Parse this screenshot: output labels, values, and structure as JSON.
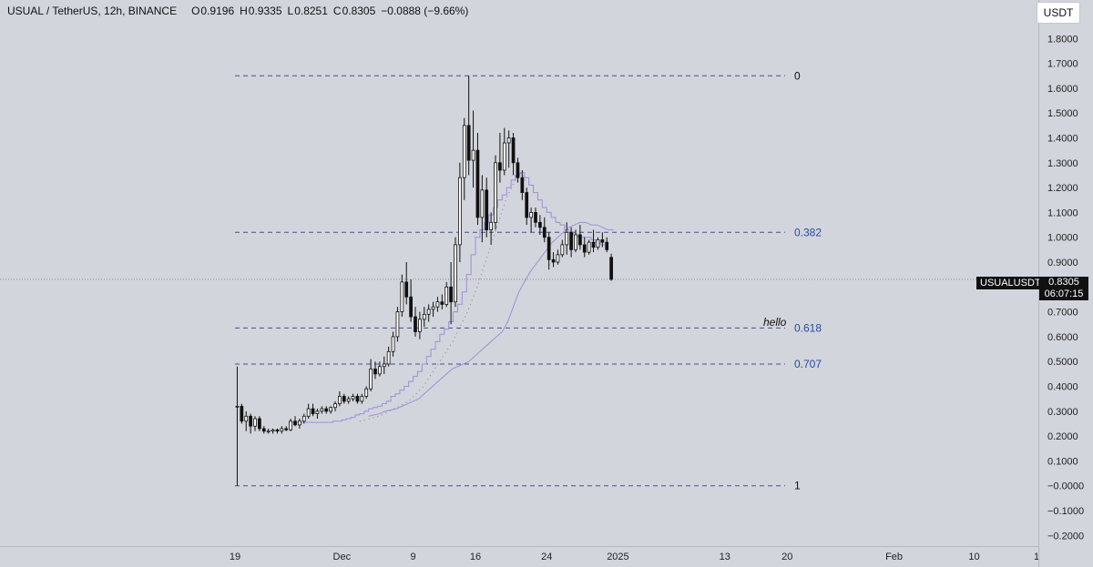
{
  "header": {
    "symbol": "USUAL / TetherUS, 12h, BINANCE",
    "open_key": "O",
    "open": "0.9196",
    "high_key": "H",
    "high": "0.9335",
    "low_key": "L",
    "low": "0.8251",
    "close_key": "C",
    "close": "0.8305",
    "change": "−0.0888 (−9.66%)"
  },
  "currency_button": "USDT",
  "last_price": {
    "symbol": "USUALUSDT",
    "price": "0.8305",
    "countdown": "06:07:15"
  },
  "annotation": "hello",
  "colors": {
    "background": "#d3d5dc",
    "candle_up": "#ffffff",
    "candle_down": "#111111",
    "ma": "#9b8fd6",
    "fib_line": "#4a4f8c",
    "fib_label_mid": "#2a4aa0",
    "fib_label_end": "#111111"
  },
  "chart_data": {
    "type": "candlestick",
    "ylim": [
      -0.25,
      1.9
    ],
    "y_ticks": [
      1.8,
      1.7,
      1.6,
      1.5,
      1.4,
      1.3,
      1.2,
      1.1,
      1.0,
      0.9,
      0.7,
      0.6,
      0.5,
      0.4,
      0.3,
      0.2,
      0.1,
      -0.0,
      -0.1,
      -0.2
    ],
    "y_tick_labels": [
      "1.8000",
      "1.7000",
      "1.6000",
      "1.5000",
      "1.4000",
      "1.3000",
      "1.2000",
      "1.1000",
      "1.0000",
      "0.9000",
      "0.7000",
      "0.6000",
      "0.5000",
      "0.4000",
      "0.3000",
      "0.2000",
      "0.1000",
      "−0.0000",
      "−0.1000",
      "−0.2000"
    ],
    "x_axis_days": [
      "2024-11-19",
      "2025-02-17"
    ],
    "x_ticks": [
      {
        "label": "19",
        "day": "2024-11-19"
      },
      {
        "label": "Dec",
        "day": "2024-12-01"
      },
      {
        "label": "9",
        "day": "2024-12-09"
      },
      {
        "label": "16",
        "day": "2024-12-16"
      },
      {
        "label": "24",
        "day": "2024-12-24"
      },
      {
        "label": "2025",
        "day": "2025-01-01"
      },
      {
        "label": "13",
        "day": "2025-01-13"
      },
      {
        "label": "20",
        "day": "2025-01-20"
      },
      {
        "label": "Feb",
        "day": "2025-02-01"
      },
      {
        "label": "10",
        "day": "2025-02-10"
      },
      {
        "label": "1",
        "day": "2025-02-17"
      }
    ],
    "fib_levels": [
      {
        "label": "0",
        "value": 1.65
      },
      {
        "label": "0.382",
        "value": 1.02
      },
      {
        "label": "0.618",
        "value": 0.635
      },
      {
        "label": "0.707",
        "value": 0.49
      },
      {
        "label": "1",
        "value": 0.0
      }
    ],
    "candles": [
      {
        "o": 0.32,
        "h": 0.48,
        "l": 0.0,
        "c": 0.32
      },
      {
        "o": 0.32,
        "h": 0.33,
        "l": 0.25,
        "c": 0.26
      },
      {
        "o": 0.26,
        "h": 0.3,
        "l": 0.22,
        "c": 0.28
      },
      {
        "o": 0.28,
        "h": 0.29,
        "l": 0.21,
        "c": 0.24
      },
      {
        "o": 0.24,
        "h": 0.28,
        "l": 0.22,
        "c": 0.27
      },
      {
        "o": 0.27,
        "h": 0.28,
        "l": 0.22,
        "c": 0.23
      },
      {
        "o": 0.23,
        "h": 0.24,
        "l": 0.21,
        "c": 0.22
      },
      {
        "o": 0.22,
        "h": 0.23,
        "l": 0.21,
        "c": 0.22
      },
      {
        "o": 0.22,
        "h": 0.23,
        "l": 0.21,
        "c": 0.225
      },
      {
        "o": 0.225,
        "h": 0.23,
        "l": 0.21,
        "c": 0.22
      },
      {
        "o": 0.22,
        "h": 0.24,
        "l": 0.21,
        "c": 0.23
      },
      {
        "o": 0.23,
        "h": 0.24,
        "l": 0.22,
        "c": 0.225
      },
      {
        "o": 0.225,
        "h": 0.27,
        "l": 0.22,
        "c": 0.26
      },
      {
        "o": 0.26,
        "h": 0.28,
        "l": 0.24,
        "c": 0.245
      },
      {
        "o": 0.245,
        "h": 0.27,
        "l": 0.23,
        "c": 0.26
      },
      {
        "o": 0.26,
        "h": 0.29,
        "l": 0.25,
        "c": 0.28
      },
      {
        "o": 0.28,
        "h": 0.33,
        "l": 0.27,
        "c": 0.31
      },
      {
        "o": 0.31,
        "h": 0.33,
        "l": 0.28,
        "c": 0.29
      },
      {
        "o": 0.29,
        "h": 0.31,
        "l": 0.27,
        "c": 0.3
      },
      {
        "o": 0.3,
        "h": 0.32,
        "l": 0.29,
        "c": 0.31
      },
      {
        "o": 0.31,
        "h": 0.32,
        "l": 0.29,
        "c": 0.3
      },
      {
        "o": 0.3,
        "h": 0.32,
        "l": 0.29,
        "c": 0.315
      },
      {
        "o": 0.315,
        "h": 0.34,
        "l": 0.3,
        "c": 0.33
      },
      {
        "o": 0.33,
        "h": 0.38,
        "l": 0.32,
        "c": 0.36
      },
      {
        "o": 0.36,
        "h": 0.37,
        "l": 0.33,
        "c": 0.34
      },
      {
        "o": 0.34,
        "h": 0.36,
        "l": 0.33,
        "c": 0.35
      },
      {
        "o": 0.35,
        "h": 0.37,
        "l": 0.34,
        "c": 0.36
      },
      {
        "o": 0.36,
        "h": 0.37,
        "l": 0.33,
        "c": 0.34
      },
      {
        "o": 0.34,
        "h": 0.37,
        "l": 0.33,
        "c": 0.36
      },
      {
        "o": 0.36,
        "h": 0.4,
        "l": 0.35,
        "c": 0.39
      },
      {
        "o": 0.39,
        "h": 0.51,
        "l": 0.38,
        "c": 0.47
      },
      {
        "o": 0.47,
        "h": 0.5,
        "l": 0.43,
        "c": 0.45
      },
      {
        "o": 0.45,
        "h": 0.5,
        "l": 0.44,
        "c": 0.48
      },
      {
        "o": 0.48,
        "h": 0.52,
        "l": 0.45,
        "c": 0.49
      },
      {
        "o": 0.49,
        "h": 0.56,
        "l": 0.48,
        "c": 0.54
      },
      {
        "o": 0.54,
        "h": 0.62,
        "l": 0.52,
        "c": 0.6
      },
      {
        "o": 0.6,
        "h": 0.72,
        "l": 0.58,
        "c": 0.7
      },
      {
        "o": 0.7,
        "h": 0.85,
        "l": 0.68,
        "c": 0.82
      },
      {
        "o": 0.82,
        "h": 0.9,
        "l": 0.73,
        "c": 0.76
      },
      {
        "o": 0.76,
        "h": 0.83,
        "l": 0.66,
        "c": 0.68
      },
      {
        "o": 0.68,
        "h": 0.72,
        "l": 0.6,
        "c": 0.62
      },
      {
        "o": 0.62,
        "h": 0.7,
        "l": 0.59,
        "c": 0.67
      },
      {
        "o": 0.67,
        "h": 0.72,
        "l": 0.64,
        "c": 0.69
      },
      {
        "o": 0.69,
        "h": 0.73,
        "l": 0.66,
        "c": 0.71
      },
      {
        "o": 0.71,
        "h": 0.74,
        "l": 0.68,
        "c": 0.72
      },
      {
        "o": 0.72,
        "h": 0.76,
        "l": 0.7,
        "c": 0.74
      },
      {
        "o": 0.74,
        "h": 0.77,
        "l": 0.71,
        "c": 0.73
      },
      {
        "o": 0.73,
        "h": 0.82,
        "l": 0.72,
        "c": 0.8
      },
      {
        "o": 0.8,
        "h": 0.9,
        "l": 0.65,
        "c": 0.74
      },
      {
        "o": 0.74,
        "h": 1.0,
        "l": 0.72,
        "c": 0.97
      },
      {
        "o": 0.97,
        "h": 1.3,
        "l": 0.9,
        "c": 1.24
      },
      {
        "o": 1.24,
        "h": 1.48,
        "l": 1.15,
        "c": 1.45
      },
      {
        "o": 1.45,
        "h": 1.65,
        "l": 1.25,
        "c": 1.31
      },
      {
        "o": 1.31,
        "h": 1.51,
        "l": 1.2,
        "c": 1.35
      },
      {
        "o": 1.35,
        "h": 1.42,
        "l": 1.05,
        "c": 1.08
      },
      {
        "o": 1.08,
        "h": 1.25,
        "l": 0.98,
        "c": 1.19
      },
      {
        "o": 1.19,
        "h": 1.24,
        "l": 1.0,
        "c": 1.03
      },
      {
        "o": 1.03,
        "h": 1.1,
        "l": 0.97,
        "c": 1.06
      },
      {
        "o": 1.06,
        "h": 1.33,
        "l": 1.03,
        "c": 1.3
      },
      {
        "o": 1.3,
        "h": 1.42,
        "l": 1.22,
        "c": 1.27
      },
      {
        "o": 1.27,
        "h": 1.44,
        "l": 1.25,
        "c": 1.38
      },
      {
        "o": 1.38,
        "h": 1.43,
        "l": 1.28,
        "c": 1.4
      },
      {
        "o": 1.4,
        "h": 1.42,
        "l": 1.25,
        "c": 1.3
      },
      {
        "o": 1.3,
        "h": 1.32,
        "l": 1.22,
        "c": 1.24
      },
      {
        "o": 1.24,
        "h": 1.27,
        "l": 1.15,
        "c": 1.18
      },
      {
        "o": 1.18,
        "h": 1.2,
        "l": 1.05,
        "c": 1.08
      },
      {
        "o": 1.08,
        "h": 1.12,
        "l": 1.02,
        "c": 1.1
      },
      {
        "o": 1.1,
        "h": 1.12,
        "l": 1.04,
        "c": 1.06
      },
      {
        "o": 1.06,
        "h": 1.09,
        "l": 1.01,
        "c": 1.04
      },
      {
        "o": 1.04,
        "h": 1.08,
        "l": 0.98,
        "c": 1.0
      },
      {
        "o": 1.0,
        "h": 1.02,
        "l": 0.87,
        "c": 0.91
      },
      {
        "o": 0.91,
        "h": 0.94,
        "l": 0.88,
        "c": 0.9
      },
      {
        "o": 0.9,
        "h": 0.95,
        "l": 0.89,
        "c": 0.93
      },
      {
        "o": 0.93,
        "h": 0.99,
        "l": 0.92,
        "c": 0.97
      },
      {
        "o": 0.97,
        "h": 1.06,
        "l": 0.93,
        "c": 1.02
      },
      {
        "o": 1.02,
        "h": 1.04,
        "l": 0.92,
        "c": 0.95
      },
      {
        "o": 0.95,
        "h": 1.03,
        "l": 0.94,
        "c": 1.01
      },
      {
        "o": 1.01,
        "h": 1.05,
        "l": 0.95,
        "c": 0.97
      },
      {
        "o": 0.97,
        "h": 1.0,
        "l": 0.92,
        "c": 0.94
      },
      {
        "o": 0.94,
        "h": 0.99,
        "l": 0.93,
        "c": 0.98
      },
      {
        "o": 0.98,
        "h": 1.03,
        "l": 0.94,
        "c": 0.96
      },
      {
        "o": 0.96,
        "h": 1.0,
        "l": 0.95,
        "c": 0.99
      },
      {
        "o": 0.99,
        "h": 1.02,
        "l": 0.96,
        "c": 0.98
      },
      {
        "o": 0.98,
        "h": 1.0,
        "l": 0.94,
        "c": 0.95
      },
      {
        "o": 0.919,
        "h": 0.934,
        "l": 0.825,
        "c": 0.831
      }
    ],
    "ma_step": [
      0.255,
      0.255,
      0.255,
      0.255,
      0.255,
      0.255,
      0.255,
      0.255,
      0.255,
      0.255,
      0.26,
      0.26,
      0.265,
      0.27,
      0.275,
      0.285,
      0.29,
      0.3,
      0.31,
      0.315,
      0.32,
      0.33,
      0.34,
      0.36,
      0.37,
      0.385,
      0.4,
      0.42,
      0.44,
      0.46,
      0.49,
      0.52,
      0.55,
      0.58,
      0.61,
      0.63,
      0.66,
      0.7,
      0.73,
      0.78,
      0.85,
      0.93,
      1.0,
      1.03,
      1.06,
      1.09,
      1.12,
      1.15,
      1.17,
      1.2,
      1.23,
      1.25,
      1.26,
      1.24,
      1.21,
      1.18,
      1.15,
      1.12,
      1.1,
      1.08,
      1.06,
      1.05,
      1.03,
      1.02,
      1.01,
      1.0,
      1.0,
      1.0,
      0.99,
      0.98,
      0.97
    ],
    "ma_slow": [
      0.28,
      0.285,
      0.29,
      0.3,
      0.305,
      0.31,
      0.32,
      0.33,
      0.34,
      0.35,
      0.37,
      0.39,
      0.41,
      0.43,
      0.45,
      0.47,
      0.48,
      0.49,
      0.5,
      0.52,
      0.54,
      0.56,
      0.58,
      0.6,
      0.62,
      0.66,
      0.72,
      0.78,
      0.82,
      0.86,
      0.89,
      0.92,
      0.95,
      0.98,
      1.0,
      1.02,
      1.04,
      1.05,
      1.06,
      1.06,
      1.05,
      1.05,
      1.04,
      1.03,
      1.03
    ],
    "ma_dots": [
      0.26,
      0.265,
      0.27,
      0.275,
      0.28,
      0.29,
      0.3,
      0.31,
      0.32,
      0.33,
      0.34,
      0.36,
      0.38,
      0.4,
      0.43,
      0.46,
      0.49,
      0.52,
      0.55,
      0.58,
      0.62,
      0.66,
      0.7,
      0.75,
      0.8,
      0.86,
      0.92,
      0.98,
      1.04,
      1.1,
      1.16,
      1.2,
      1.24,
      1.26,
      1.22
    ]
  }
}
